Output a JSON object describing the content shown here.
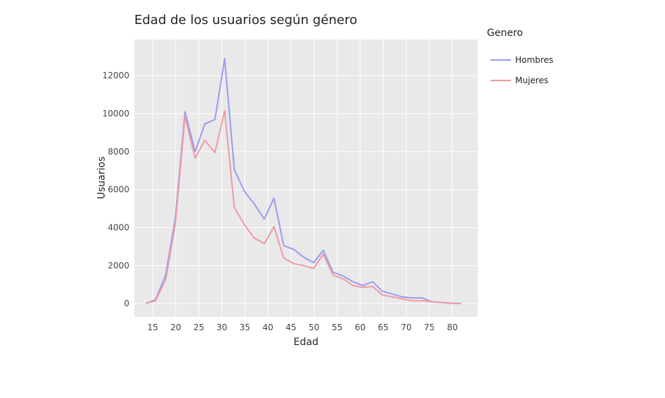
{
  "chart_data": {
    "type": "line",
    "title": "Edad de los usuarios según género",
    "xlabel": "Edad",
    "ylabel": "Usuarios",
    "xlim": [
      11,
      85.5
    ],
    "ylim": [
      -700,
      13900
    ],
    "xticks": [
      15,
      20,
      25,
      30,
      35,
      40,
      45,
      50,
      55,
      60,
      65,
      70,
      75,
      80
    ],
    "yticks": [
      0,
      2000,
      4000,
      6000,
      8000,
      10000,
      12000
    ],
    "ytick_labels": [
      "0",
      "2000",
      "4000",
      "6000",
      "8000",
      "10000",
      "12000"
    ],
    "grid": true,
    "legend": {
      "title": "Genero",
      "position": "right"
    },
    "x": [
      13.5,
      15.6,
      17.8,
      19.9,
      22.0,
      24.2,
      26.3,
      28.5,
      30.6,
      32.7,
      34.9,
      37.0,
      39.2,
      41.3,
      43.4,
      45.6,
      47.7,
      49.9,
      52.0,
      54.1,
      56.3,
      58.4,
      60.6,
      62.7,
      64.8,
      67.0,
      69.1,
      71.3,
      73.4,
      75.5,
      77.7,
      79.8,
      81.9
    ],
    "series": [
      {
        "name": "Hombres",
        "color": "#9b9bf0",
        "values": [
          0,
          200,
          1500,
          4500,
          10100,
          8000,
          9450,
          9700,
          12900,
          7050,
          5900,
          5250,
          4450,
          5550,
          3050,
          2850,
          2450,
          2150,
          2800,
          1650,
          1450,
          1150,
          950,
          1150,
          650,
          500,
          350,
          300,
          300,
          100,
          50,
          20,
          0
        ]
      },
      {
        "name": "Mujeres",
        "color": "#f09aa4",
        "values": [
          0,
          150,
          1250,
          4200,
          9850,
          7650,
          8600,
          7950,
          10150,
          5050,
          4150,
          3450,
          3150,
          4050,
          2400,
          2100,
          2000,
          1850,
          2600,
          1500,
          1300,
          950,
          850,
          900,
          450,
          350,
          250,
          150,
          150,
          100,
          50,
          10,
          0
        ]
      }
    ]
  }
}
